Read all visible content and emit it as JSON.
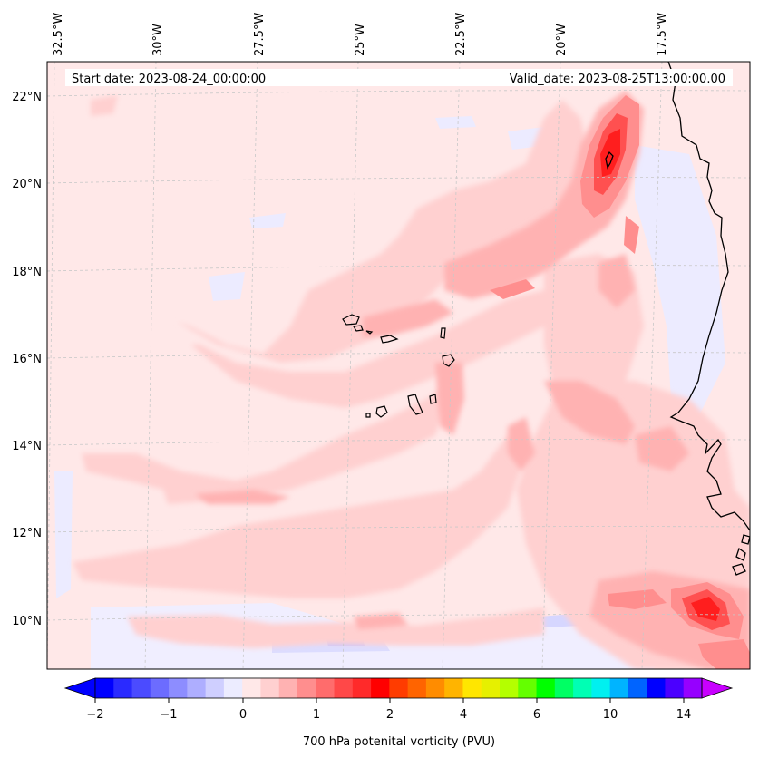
{
  "map": {
    "start_date": "Start date: 2023-08-24_00:00:00",
    "valid_date": "Valid_date: 2023-08-25T13:00:00.00",
    "longitude_labels": [
      "32.5°W",
      "30°W",
      "27.5°W",
      "25°W",
      "22.5°W",
      "20°W",
      "17.5°W"
    ],
    "latitude_labels": [
      "22°N",
      "20°N",
      "18°N",
      "16°N",
      "14°N",
      "12°N",
      "10°N"
    ],
    "field_colors": {
      "background": "#ffe8e8",
      "light_pink": "#ffd0d0",
      "pink": "#ffb2b2",
      "salmon": "#ff8e8e",
      "red": "#ff5050",
      "deep_red": "#ff1e1e",
      "pale_blue": "#ecebff",
      "light_blue": "#c8c8ff",
      "coastline": "#000000",
      "gridline": "#c8c8c8"
    }
  },
  "colorbar": {
    "label": "700 hPa potenital vorticity (PVU)",
    "tick_labels": [
      "−2",
      "−1",
      "0",
      "1",
      "2",
      "4",
      "6",
      "10",
      "14"
    ],
    "colors": [
      "#0000ff",
      "#2a2aff",
      "#4b4bff",
      "#6c6cff",
      "#8d8dff",
      "#aeaeff",
      "#cfcfff",
      "#ececff",
      "#ffe8e8",
      "#ffd0d0",
      "#ffb2b2",
      "#ff8e8e",
      "#ff6c6c",
      "#ff4848",
      "#ff2a2a",
      "#ff0000",
      "#ff3c00",
      "#ff6400",
      "#ff8c00",
      "#ffb400",
      "#ffe600",
      "#e6f000",
      "#b4ff00",
      "#64ff00",
      "#00ff00",
      "#00ff64",
      "#00ffb4",
      "#00f0f0",
      "#00b4ff",
      "#0064ff",
      "#0000ff",
      "#4b00ff",
      "#9600ff"
    ],
    "extend_low_color": "#0000ff",
    "extend_high_color": "#c800ff"
  }
}
